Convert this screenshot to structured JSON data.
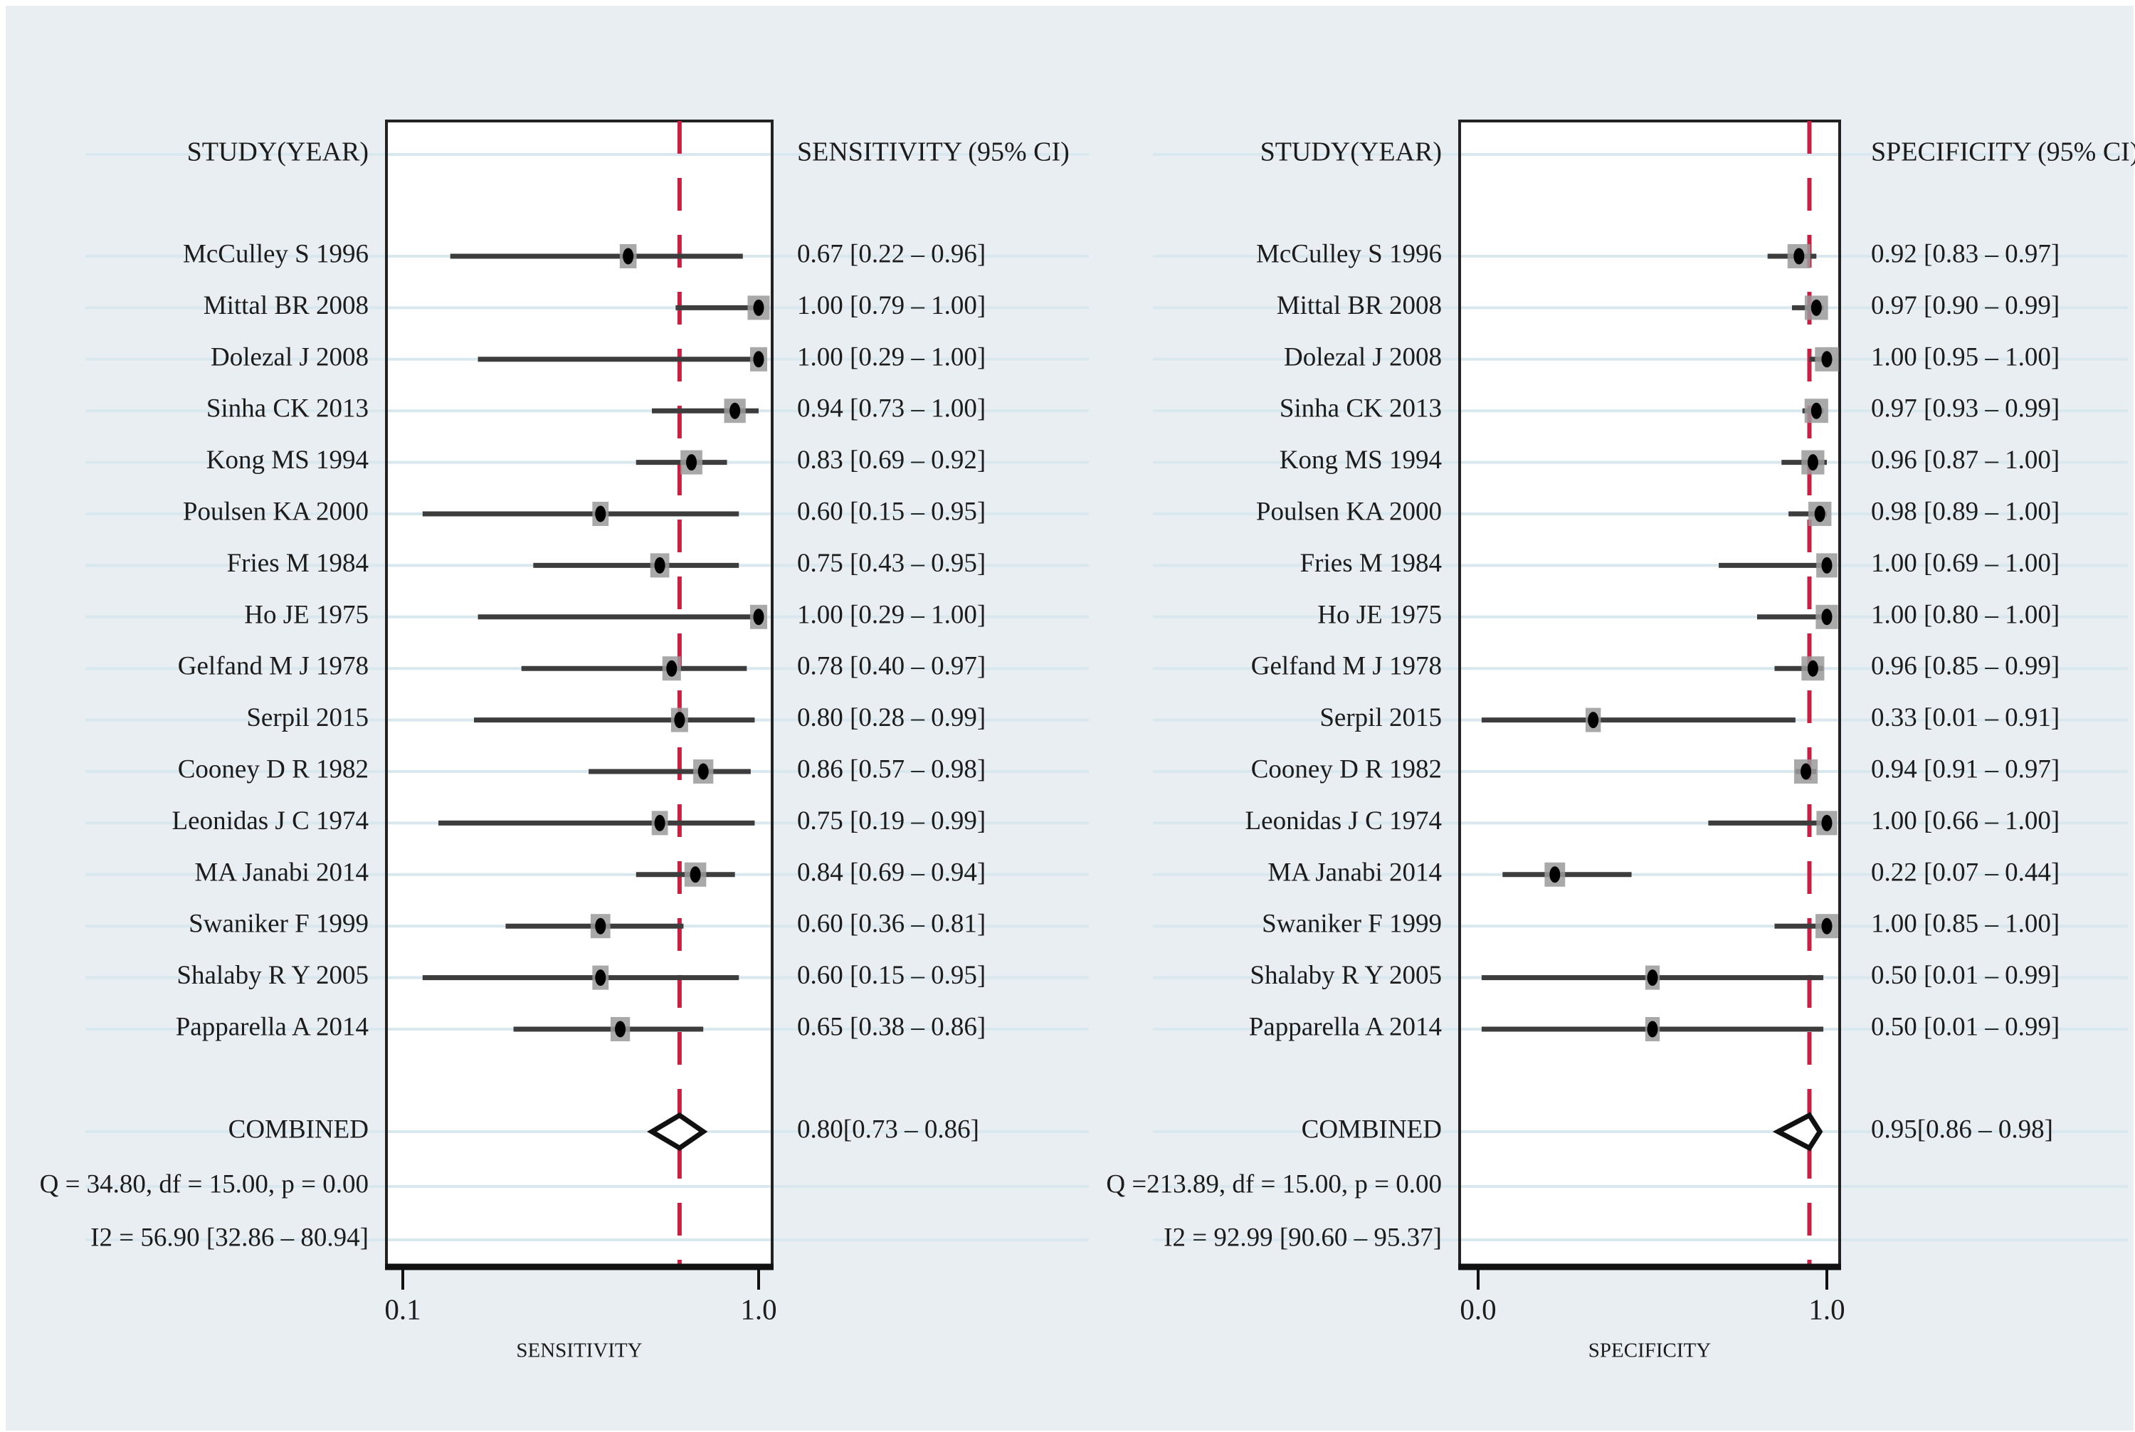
{
  "figure": {
    "kind": "paired-forest-plot",
    "background_color": "#e8eef1",
    "frame_color": "#ffffff"
  },
  "colors": {
    "background": "#e8eef1",
    "stripe": "#d9e8ee",
    "plot_fill": "#ffffff",
    "border": "#222222",
    "axis": "#111111",
    "ci_line": "#3d3d3d",
    "marker_box": "#9a9a9a",
    "marker_dot": "#000000",
    "ref_line": "#c91f42",
    "diamond_fill": "#ffffff",
    "diamond_stroke": "#111111",
    "text": "#1c1c1c"
  },
  "chart_data": [
    {
      "type": "forest",
      "panel_id": "sensitivity",
      "study_header": "STUDY(YEAR)",
      "value_header": "SENSITIVITY (95% CI)",
      "xlabel": "SENSITIVITY",
      "axis": {
        "min": 0.1,
        "max": 1.0,
        "ticks": [
          0.1,
          1.0
        ],
        "tick_labels": [
          "0.1",
          "1.0"
        ]
      },
      "ref_line_value": 0.8,
      "studies": [
        {
          "label": "McCulley S 1996",
          "est": 0.67,
          "lo": 0.22,
          "hi": 0.96,
          "ci_text": "0.67 [0.22 – 0.96]"
        },
        {
          "label": "Mittal BR 2008",
          "est": 1.0,
          "lo": 0.79,
          "hi": 1.0,
          "ci_text": "1.00 [0.79 – 1.00]"
        },
        {
          "label": "Dolezal J 2008",
          "est": 1.0,
          "lo": 0.29,
          "hi": 1.0,
          "ci_text": "1.00 [0.29 – 1.00]"
        },
        {
          "label": "Sinha CK 2013",
          "est": 0.94,
          "lo": 0.73,
          "hi": 1.0,
          "ci_text": "0.94 [0.73 – 1.00]"
        },
        {
          "label": "Kong MS 1994",
          "est": 0.83,
          "lo": 0.69,
          "hi": 0.92,
          "ci_text": "0.83 [0.69 – 0.92]"
        },
        {
          "label": "Poulsen KA 2000",
          "est": 0.6,
          "lo": 0.15,
          "hi": 0.95,
          "ci_text": "0.60 [0.15 – 0.95]"
        },
        {
          "label": "Fries M 1984",
          "est": 0.75,
          "lo": 0.43,
          "hi": 0.95,
          "ci_text": "0.75 [0.43 – 0.95]"
        },
        {
          "label": "Ho JE 1975",
          "est": 1.0,
          "lo": 0.29,
          "hi": 1.0,
          "ci_text": "1.00 [0.29 – 1.00]"
        },
        {
          "label": "Gelfand M J 1978",
          "est": 0.78,
          "lo": 0.4,
          "hi": 0.97,
          "ci_text": "0.78 [0.40 – 0.97]"
        },
        {
          "label": "Serpil 2015",
          "est": 0.8,
          "lo": 0.28,
          "hi": 0.99,
          "ci_text": "0.80 [0.28 – 0.99]"
        },
        {
          "label": "Cooney D R 1982",
          "est": 0.86,
          "lo": 0.57,
          "hi": 0.98,
          "ci_text": "0.86 [0.57 – 0.98]"
        },
        {
          "label": "Leonidas J C 1974",
          "est": 0.75,
          "lo": 0.19,
          "hi": 0.99,
          "ci_text": "0.75 [0.19 – 0.99]"
        },
        {
          "label": "MA Janabi 2014",
          "est": 0.84,
          "lo": 0.69,
          "hi": 0.94,
          "ci_text": "0.84 [0.69 – 0.94]"
        },
        {
          "label": "Swaniker F 1999",
          "est": 0.6,
          "lo": 0.36,
          "hi": 0.81,
          "ci_text": "0.60 [0.36 – 0.81]"
        },
        {
          "label": "Shalaby R Y 2005",
          "est": 0.6,
          "lo": 0.15,
          "hi": 0.95,
          "ci_text": "0.60 [0.15 – 0.95]"
        },
        {
          "label": "Papparella A 2014",
          "est": 0.65,
          "lo": 0.38,
          "hi": 0.86,
          "ci_text": "0.65 [0.38 – 0.86]"
        }
      ],
      "combined": {
        "label": "COMBINED",
        "est": 0.8,
        "lo": 0.73,
        "hi": 0.86,
        "ci_text": "0.80[0.73 – 0.86]"
      },
      "heterogeneity": {
        "q_line": "Q = 34.80, df = 15.00, p =  0.00",
        "i2_line": "I2 = 56.90 [32.86 – 80.94]"
      }
    },
    {
      "type": "forest",
      "panel_id": "specificity",
      "study_header": "STUDY(YEAR)",
      "value_header": "SPECIFICITY (95% CI)",
      "xlabel": "SPECIFICITY",
      "axis": {
        "min": 0.0,
        "max": 1.0,
        "ticks": [
          0.0,
          1.0
        ],
        "tick_labels": [
          "0.0",
          "1.0"
        ]
      },
      "ref_line_value": 0.95,
      "studies": [
        {
          "label": "McCulley S 1996",
          "est": 0.92,
          "lo": 0.83,
          "hi": 0.97,
          "ci_text": "0.92 [0.83 – 0.97]"
        },
        {
          "label": "Mittal BR 2008",
          "est": 0.97,
          "lo": 0.9,
          "hi": 0.99,
          "ci_text": "0.97 [0.90 – 0.99]"
        },
        {
          "label": "Dolezal J 2008",
          "est": 1.0,
          "lo": 0.95,
          "hi": 1.0,
          "ci_text": "1.00 [0.95 – 1.00]"
        },
        {
          "label": "Sinha CK 2013",
          "est": 0.97,
          "lo": 0.93,
          "hi": 0.99,
          "ci_text": "0.97 [0.93 – 0.99]"
        },
        {
          "label": "Kong MS 1994",
          "est": 0.96,
          "lo": 0.87,
          "hi": 1.0,
          "ci_text": "0.96 [0.87 – 1.00]"
        },
        {
          "label": "Poulsen KA 2000",
          "est": 0.98,
          "lo": 0.89,
          "hi": 1.0,
          "ci_text": "0.98 [0.89 – 1.00]"
        },
        {
          "label": "Fries M 1984",
          "est": 1.0,
          "lo": 0.69,
          "hi": 1.0,
          "ci_text": "1.00 [0.69 – 1.00]"
        },
        {
          "label": "Ho JE 1975",
          "est": 1.0,
          "lo": 0.8,
          "hi": 1.0,
          "ci_text": "1.00 [0.80 – 1.00]"
        },
        {
          "label": "Gelfand M J 1978",
          "est": 0.96,
          "lo": 0.85,
          "hi": 0.99,
          "ci_text": "0.96 [0.85 – 0.99]"
        },
        {
          "label": "Serpil 2015",
          "est": 0.33,
          "lo": 0.01,
          "hi": 0.91,
          "ci_text": "0.33 [0.01 – 0.91]"
        },
        {
          "label": "Cooney D R 1982",
          "est": 0.94,
          "lo": 0.91,
          "hi": 0.97,
          "ci_text": "0.94 [0.91 – 0.97]"
        },
        {
          "label": "Leonidas J C 1974",
          "est": 1.0,
          "lo": 0.66,
          "hi": 1.0,
          "ci_text": "1.00 [0.66 – 1.00]"
        },
        {
          "label": "MA Janabi 2014",
          "est": 0.22,
          "lo": 0.07,
          "hi": 0.44,
          "ci_text": "0.22 [0.07 – 0.44]"
        },
        {
          "label": "Swaniker F 1999",
          "est": 1.0,
          "lo": 0.85,
          "hi": 1.0,
          "ci_text": "1.00 [0.85 – 1.00]"
        },
        {
          "label": "Shalaby R Y 2005",
          "est": 0.5,
          "lo": 0.01,
          "hi": 0.99,
          "ci_text": "0.50 [0.01 – 0.99]"
        },
        {
          "label": "Papparella A 2014",
          "est": 0.5,
          "lo": 0.01,
          "hi": 0.99,
          "ci_text": "0.50 [0.01 – 0.99]"
        }
      ],
      "combined": {
        "label": "COMBINED",
        "est": 0.95,
        "lo": 0.86,
        "hi": 0.98,
        "ci_text": "0.95[0.86 – 0.98]"
      },
      "heterogeneity": {
        "q_line": "Q =213.89, df = 15.00, p =  0.00",
        "i2_line": "I2 = 92.99 [90.60 – 95.37]"
      }
    }
  ]
}
